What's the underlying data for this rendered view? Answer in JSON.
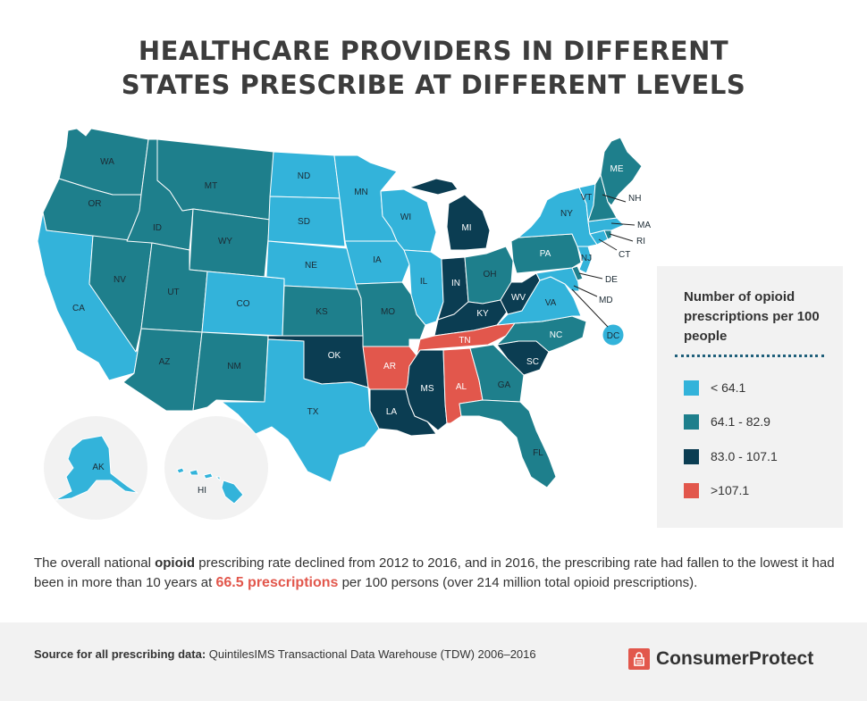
{
  "title": {
    "line1": "HEALTHCARE PROVIDERS IN DIFFERENT",
    "line2": "STATES PRESCRIBE AT DIFFERENT LEVELS"
  },
  "colors": {
    "tier1": "#33b3da",
    "tier2": "#1e7f8c",
    "tier3": "#0b3d52",
    "tier4": "#e2574c"
  },
  "legend": {
    "title": "Number of opioid prescriptions per 100 people",
    "items": [
      {
        "label": "< 64.1",
        "color": "#33b3da"
      },
      {
        "label": "64.1 - 82.9",
        "color": "#1e7f8c"
      },
      {
        "label": "83.0 - 107.1",
        "color": "#0b3d52"
      },
      {
        "label": ">107.1",
        "color": "#e2574c"
      }
    ]
  },
  "states": {
    "WA": {
      "label": "WA",
      "tier": 2
    },
    "OR": {
      "label": "OR",
      "tier": 2
    },
    "CA": {
      "label": "CA",
      "tier": 1
    },
    "ID": {
      "label": "ID",
      "tier": 2
    },
    "NV": {
      "label": "NV",
      "tier": 2
    },
    "MT": {
      "label": "MT",
      "tier": 2
    },
    "WY": {
      "label": "WY",
      "tier": 2
    },
    "UT": {
      "label": "UT",
      "tier": 2
    },
    "AZ": {
      "label": "AZ",
      "tier": 2
    },
    "CO": {
      "label": "CO",
      "tier": 1
    },
    "NM": {
      "label": "NM",
      "tier": 2
    },
    "ND": {
      "label": "ND",
      "tier": 1
    },
    "SD": {
      "label": "SD",
      "tier": 1
    },
    "NE": {
      "label": "NE",
      "tier": 1
    },
    "KS": {
      "label": "KS",
      "tier": 2
    },
    "OK": {
      "label": "OK",
      "tier": 3
    },
    "TX": {
      "label": "TX",
      "tier": 1
    },
    "MN": {
      "label": "MN",
      "tier": 1
    },
    "IA": {
      "label": "IA",
      "tier": 1
    },
    "MO": {
      "label": "MO",
      "tier": 2
    },
    "AR": {
      "label": "AR",
      "tier": 4
    },
    "LA": {
      "label": "LA",
      "tier": 3
    },
    "WI": {
      "label": "WI",
      "tier": 1
    },
    "IL": {
      "label": "IL",
      "tier": 1
    },
    "MI": {
      "label": "MI",
      "tier": 3
    },
    "IN": {
      "label": "IN",
      "tier": 3
    },
    "OH": {
      "label": "OH",
      "tier": 2
    },
    "KY": {
      "label": "KY",
      "tier": 3
    },
    "TN": {
      "label": "TN",
      "tier": 4
    },
    "MS": {
      "label": "MS",
      "tier": 3
    },
    "AL": {
      "label": "AL",
      "tier": 4
    },
    "GA": {
      "label": "GA",
      "tier": 2
    },
    "FL": {
      "label": "FL",
      "tier": 2
    },
    "SC": {
      "label": "SC",
      "tier": 3
    },
    "NC": {
      "label": "NC",
      "tier": 2
    },
    "VA": {
      "label": "VA",
      "tier": 1
    },
    "WV": {
      "label": "WV",
      "tier": 3
    },
    "PA": {
      "label": "PA",
      "tier": 2
    },
    "NY": {
      "label": "NY",
      "tier": 1
    },
    "VT": {
      "label": "VT",
      "tier": 1
    },
    "NH": {
      "label": "NH",
      "tier": 2
    },
    "ME": {
      "label": "ME",
      "tier": 2
    },
    "MA": {
      "label": "MA",
      "tier": 1
    },
    "RI": {
      "label": "RI",
      "tier": 2
    },
    "CT": {
      "label": "CT",
      "tier": 1
    },
    "NJ": {
      "label": "NJ",
      "tier": 1
    },
    "DE": {
      "label": "DE",
      "tier": 2
    },
    "MD": {
      "label": "MD",
      "tier": 1
    },
    "DC": {
      "label": "DC",
      "tier": 1
    },
    "AK": {
      "label": "AK",
      "tier": 1
    },
    "HI": {
      "label": "HI",
      "tier": 1
    }
  },
  "description": {
    "part1": "The overall national ",
    "bold": "opioid",
    "part2": " prescribing rate declined from 2012 to 2016, and in 2016, the prescribing rate had fallen to the lowest it had been in more than 10 years at ",
    "highlight": "66.5 prescriptions",
    "part3": " per 100 persons (over 214 million total opioid prescriptions)."
  },
  "footer": {
    "source_label": "Source for all prescribing data:",
    "source_text": " QuintilesIMS Transactional Data Warehouse (TDW) 2006–2016",
    "brand": "ConsumerProtect"
  }
}
